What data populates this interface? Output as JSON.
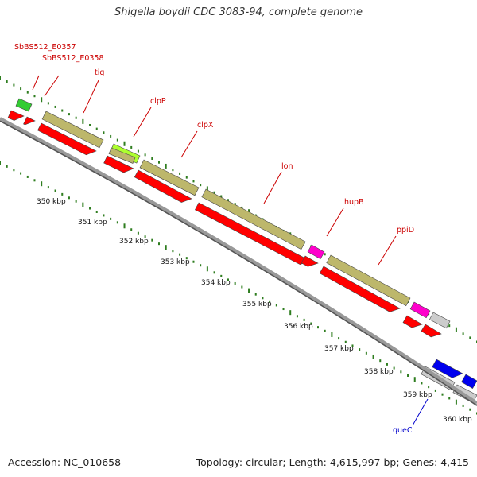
{
  "title": "Shigella boydii CDC 3083-94, complete genome",
  "footer": {
    "accession": "Accession: NC_010658",
    "summary": "Topology: circular; Length: 4,615,997 bp; Genes: 4,415"
  },
  "colors": {
    "backbone": "#999999",
    "tick": "#2e7d1f",
    "cds": "#ff0000",
    "cds_other": "#cccccc",
    "trna": "#bdb76b",
    "label_red": "#cc0000",
    "label_blue": "#0000cc"
  },
  "ruler": {
    "unit": "kbp",
    "labels": [
      "350 kbp",
      "351 kbp",
      "352 kbp",
      "353 kbp",
      "354 kbp",
      "355 kbp",
      "356 kbp",
      "357 kbp",
      "358 kbp",
      "359 kbp",
      "360 kbp"
    ]
  },
  "genes": [
    {
      "label": "SbBS512_E0357",
      "color": "red"
    },
    {
      "label": "SbBS512_E0358",
      "color": "red"
    },
    {
      "label": "tig",
      "color": "red"
    },
    {
      "label": "clpP",
      "color": "red"
    },
    {
      "label": "clpX",
      "color": "red"
    },
    {
      "label": "lon",
      "color": "red"
    },
    {
      "label": "hupB",
      "color": "red"
    },
    {
      "label": "ppiD",
      "color": "red"
    },
    {
      "label": "queC",
      "color": "blue"
    }
  ]
}
